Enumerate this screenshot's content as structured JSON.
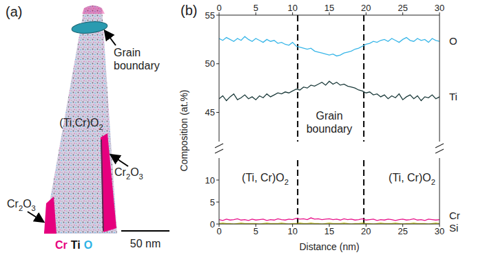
{
  "panel_a": {
    "panel_label": "(a)",
    "grain_boundary": "Grain boundary",
    "matrix": "(Ti,Cr)O2",
    "phases": [
      "Cr2O3",
      "Cr2O3"
    ],
    "scale_bar": "50 nm",
    "elements": [
      {
        "name": "Cr",
        "color": "#e6007e"
      },
      {
        "name": "Ti",
        "color": "#111111"
      },
      {
        "name": "O",
        "color": "#2eb3e6"
      }
    ]
  },
  "chart_data": [
    {
      "type": "line",
      "panel_label": "(b)",
      "ylabel": "Composition (at.%)",
      "x": [
        0,
        0.5,
        1,
        1.5,
        2,
        2.5,
        3,
        3.5,
        4,
        4.5,
        5,
        5.5,
        6,
        6.5,
        7,
        7.5,
        8,
        8.5,
        9,
        9.5,
        10,
        10.5,
        11,
        11.5,
        12,
        12.5,
        13,
        13.5,
        14,
        14.5,
        15,
        15.5,
        16,
        16.5,
        17,
        17.5,
        18,
        18.5,
        19,
        19.5,
        20,
        20.5,
        21,
        21.5,
        22,
        22.5,
        23,
        23.5,
        24,
        24.5,
        25,
        25.5,
        26,
        26.5,
        27,
        27.5,
        28,
        28.5,
        29,
        29.5,
        30
      ],
      "xlim": [
        0,
        30
      ],
      "xticks": [
        0,
        5,
        10,
        15,
        20,
        25,
        30
      ],
      "ylim": [
        42,
        55
      ],
      "yticks": [
        45,
        50,
        55
      ],
      "series": [
        {
          "name": "O",
          "color": "#38b6e8",
          "values": [
            52.6,
            52.4,
            52.7,
            52.5,
            52.3,
            52.6,
            52.4,
            52.8,
            52.5,
            52.3,
            52.6,
            52.4,
            52.2,
            52.5,
            52.3,
            52.4,
            52.1,
            52.2,
            52.0,
            51.9,
            52.2,
            51.8,
            51.7,
            51.6,
            51.5,
            51.6,
            51.3,
            51.2,
            51.1,
            51.0,
            50.9,
            51.0,
            50.8,
            50.9,
            51.1,
            51.2,
            51.3,
            51.5,
            51.6,
            51.8,
            52.0,
            52.1,
            52.3,
            52.2,
            52.4,
            52.5,
            52.3,
            52.6,
            52.4,
            52.2,
            52.5,
            52.7,
            52.4,
            52.3,
            52.6,
            52.4,
            52.5,
            52.2,
            52.6,
            52.4,
            52.3
          ]
        },
        {
          "name": "Ti",
          "color": "#1b3a3a",
          "values": [
            46.4,
            46.7,
            46.2,
            46.6,
            46.9,
            46.3,
            46.5,
            46.8,
            46.4,
            46.6,
            46.3,
            46.7,
            46.5,
            46.9,
            46.6,
            46.8,
            47.0,
            46.9,
            47.1,
            47.0,
            47.2,
            47.4,
            47.3,
            47.6,
            47.5,
            47.8,
            47.7,
            47.9,
            48.1,
            47.8,
            48.2,
            47.9,
            48.1,
            47.8,
            47.9,
            47.7,
            47.6,
            47.5,
            47.3,
            47.2,
            47.0,
            47.1,
            46.8,
            46.9,
            46.6,
            46.8,
            46.4,
            46.7,
            46.5,
            46.9,
            46.3,
            46.6,
            46.8,
            46.4,
            46.7,
            46.2,
            46.6,
            46.5,
            46.8,
            46.4,
            46.6
          ]
        }
      ],
      "vlines": [
        10.7,
        19.7
      ],
      "annotations": [
        "Grain boundary"
      ]
    },
    {
      "type": "line",
      "xlabel": "Distance (nm)",
      "x": [
        0,
        0.5,
        1,
        1.5,
        2,
        2.5,
        3,
        3.5,
        4,
        4.5,
        5,
        5.5,
        6,
        6.5,
        7,
        7.5,
        8,
        8.5,
        9,
        9.5,
        10,
        10.5,
        11,
        11.5,
        12,
        12.5,
        13,
        13.5,
        14,
        14.5,
        15,
        15.5,
        16,
        16.5,
        17,
        17.5,
        18,
        18.5,
        19,
        19.5,
        20,
        20.5,
        21,
        21.5,
        22,
        22.5,
        23,
        23.5,
        24,
        24.5,
        25,
        25.5,
        26,
        26.5,
        27,
        27.5,
        28,
        28.5,
        29,
        29.5,
        30
      ],
      "xlim": [
        0,
        30
      ],
      "xticks": [
        0,
        5,
        10,
        15,
        20,
        25,
        30
      ],
      "ylim": [
        0,
        15
      ],
      "yticks": [
        0,
        5,
        10
      ],
      "series": [
        {
          "name": "Cr",
          "color": "#e8128a",
          "values": [
            1.0,
            0.8,
            1.1,
            0.9,
            1.0,
            1.2,
            0.9,
            1.0,
            0.8,
            1.1,
            0.9,
            1.0,
            1.1,
            0.8,
            1.0,
            0.9,
            1.2,
            1.0,
            0.9,
            1.1,
            1.0,
            1.3,
            1.1,
            1.2,
            1.0,
            1.4,
            1.1,
            1.2,
            1.0,
            1.1,
            1.2,
            1.0,
            1.1,
            0.9,
            1.2,
            1.0,
            1.1,
            0.9,
            1.0,
            1.2,
            0.9,
            1.0,
            1.1,
            0.8,
            1.0,
            0.9,
            1.1,
            1.0,
            0.8,
            1.0,
            1.1,
            0.9,
            1.0,
            1.2,
            0.9,
            1.0,
            0.8,
            1.1,
            1.0,
            0.9,
            1.0
          ]
        },
        {
          "name": "Si",
          "color": "#b8b800",
          "values": [
            0.1,
            0.2,
            0.1,
            0.1,
            0.0,
            0.1,
            0.2,
            0.1,
            0.1,
            0.1,
            0.1,
            0.0,
            0.1,
            0.2,
            0.1,
            0.1,
            0.1,
            0.2,
            0.1,
            0.0,
            0.1,
            0.1,
            0.2,
            0.1,
            0.1,
            0.2,
            0.1,
            0.1,
            0.0,
            0.1,
            0.2,
            0.1,
            0.1,
            0.1,
            0.2,
            0.1,
            0.0,
            0.1,
            0.1,
            0.2,
            0.1,
            0.1,
            0.0,
            0.1,
            0.2,
            0.1,
            0.1,
            0.1,
            0.2,
            0.1,
            0.0,
            0.1,
            0.1,
            0.2,
            0.1,
            0.1,
            0.1,
            0.0,
            0.1,
            0.2,
            0.1
          ]
        }
      ],
      "vlines": [
        10.7,
        19.7
      ],
      "annotations": [
        "(Ti, Cr)O2",
        "(Ti, Cr)O2"
      ]
    }
  ]
}
